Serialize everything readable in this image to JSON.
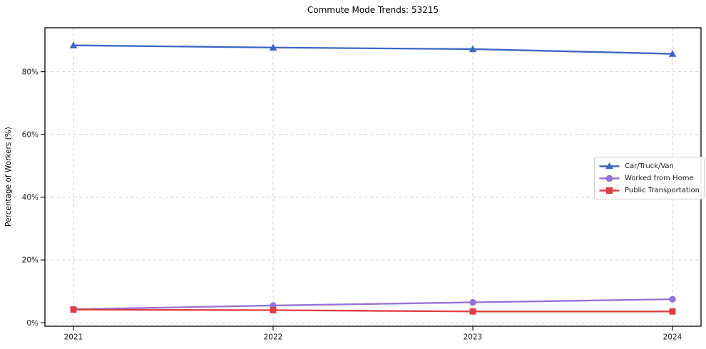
{
  "figure": {
    "background": "#ffffff"
  },
  "chart_data": {
    "type": "line",
    "title": "Commute Mode Trends: 53215",
    "xlabel": "",
    "ylabel": "Percentage of Workers (%)",
    "x": [
      2021,
      2022,
      2023,
      2024
    ],
    "x_tick_labels": [
      "2021",
      "2022",
      "2023",
      "2024"
    ],
    "y_ticks": [
      0,
      20,
      40,
      60,
      80
    ],
    "y_tick_labels": [
      "0%",
      "20%",
      "40%",
      "60%",
      "80%"
    ],
    "ylim": [
      -1.1,
      94.0
    ],
    "grid": true,
    "grid_style": "dashed",
    "legend_position": "center-right",
    "series": [
      {
        "name": "Car/Truck/Van",
        "color": "#3a66c8",
        "marker": "triangle",
        "values": [
          88.4,
          87.7,
          87.2,
          85.7
        ]
      },
      {
        "name": "Worked from Home",
        "color": "#9671d9",
        "marker": "circle",
        "values": [
          4.3,
          5.5,
          6.5,
          7.5
        ]
      },
      {
        "name": "Public Transportation",
        "color": "#e03c41",
        "marker": "square",
        "values": [
          4.2,
          4.0,
          3.6,
          3.6
        ]
      }
    ]
  }
}
